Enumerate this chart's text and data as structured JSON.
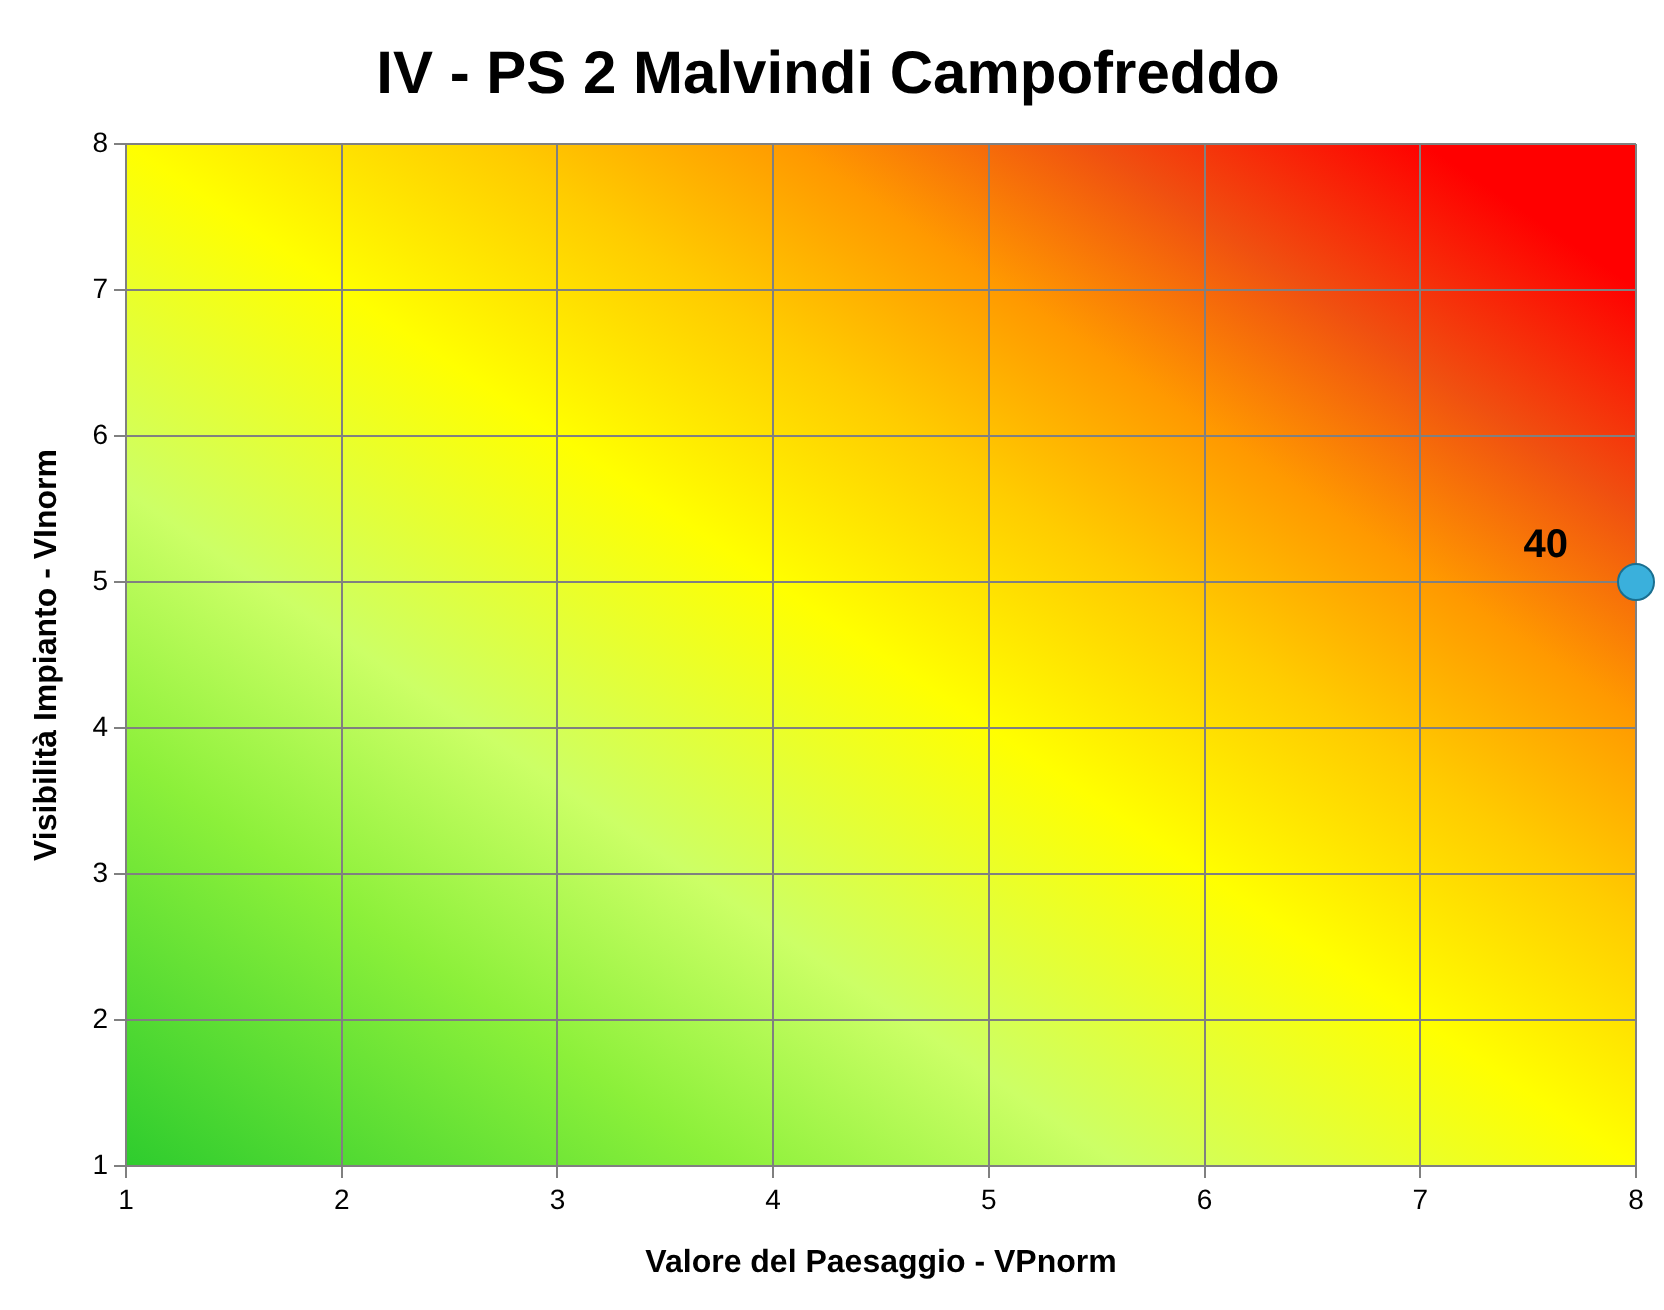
{
  "chart_data": {
    "type": "scatter",
    "title": "IV - PS 2 Malvindi Campofreddo",
    "xlabel": "Valore del Paesaggio - VPnorm",
    "ylabel": "Visibilità Impianto - VInorm",
    "x": [
      8
    ],
    "values": [
      5
    ],
    "annotations": [
      {
        "text": "40",
        "x": 8,
        "y": 5
      }
    ],
    "color": "#3ab0dc",
    "marker": "circle",
    "xlim": [
      1,
      8
    ],
    "ylim": [
      1,
      8
    ],
    "xticks": [
      1,
      2,
      3,
      4,
      5,
      6,
      7,
      8
    ],
    "yticks": [
      1,
      2,
      3,
      4,
      5,
      6,
      7,
      8
    ],
    "grid": true,
    "legend": false
  }
}
